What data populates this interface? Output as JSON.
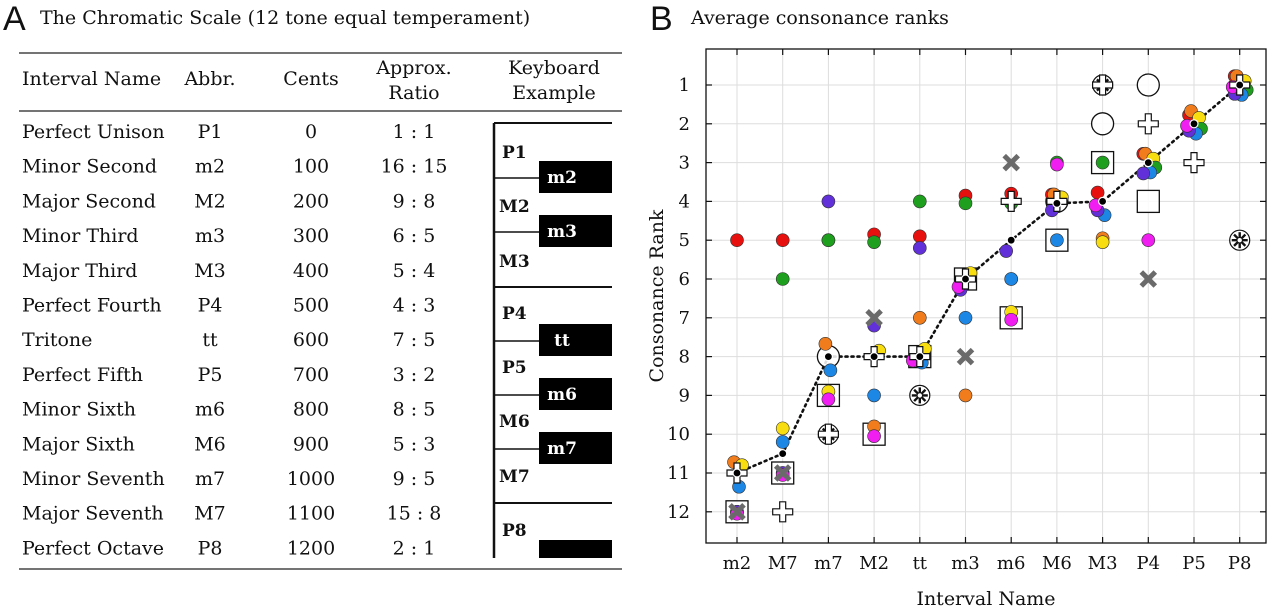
{
  "panel_a": {
    "letter": "A",
    "title": "The Chromatic Scale (12 tone equal temperament)",
    "headers": {
      "name": "Interval Name",
      "abbr": "Abbr.",
      "cents": "Cents",
      "ratio_1": "Approx.",
      "ratio_2": "Ratio",
      "keyboard_1": "Keyboard",
      "keyboard_2": "Example"
    },
    "rows": [
      {
        "name": "Perfect Unison",
        "abbr": "P1",
        "cents": "0",
        "ratio": "1 : 1"
      },
      {
        "name": "Minor Second",
        "abbr": "m2",
        "cents": "100",
        "ratio": "16 : 15"
      },
      {
        "name": "Major Second",
        "abbr": "M2",
        "cents": "200",
        "ratio": "9 : 8"
      },
      {
        "name": "Minor Third",
        "abbr": "m3",
        "cents": "300",
        "ratio": "6 : 5"
      },
      {
        "name": "Major Third",
        "abbr": "M3",
        "cents": "400",
        "ratio": "5 : 4"
      },
      {
        "name": "Perfect Fourth",
        "abbr": "P4",
        "cents": "500",
        "ratio": "4 : 3"
      },
      {
        "name": "Tritone",
        "abbr": "tt",
        "cents": "600",
        "ratio": "7 : 5"
      },
      {
        "name": "Perfect Fifth",
        "abbr": "P5",
        "cents": "700",
        "ratio": "3 : 2"
      },
      {
        "name": "Minor Sixth",
        "abbr": "m6",
        "cents": "800",
        "ratio": "8 : 5"
      },
      {
        "name": "Major Sixth",
        "abbr": "M6",
        "cents": "900",
        "ratio": "5 : 3"
      },
      {
        "name": "Minor Seventh",
        "abbr": "m7",
        "cents": "1000",
        "ratio": "9 : 5"
      },
      {
        "name": "Major Seventh",
        "abbr": "M7",
        "cents": "1100",
        "ratio": "15 : 8"
      },
      {
        "name": "Perfect Octave",
        "abbr": "P8",
        "cents": "1200",
        "ratio": "2 : 1"
      }
    ],
    "keyboard": {
      "white_key_labels": [
        "P1",
        "M2",
        "M3",
        "P4",
        "P5",
        "M6",
        "M7",
        "P8"
      ],
      "black_key_labels": [
        "m2",
        "m3",
        "tt",
        "m6",
        "m7"
      ]
    }
  },
  "panel_b": {
    "letter": "B",
    "title": "Average consonance ranks"
  },
  "colors": {
    "red": "#e8100e",
    "orange": "#f07c1c",
    "yellow": "#f8de10",
    "green": "#1ea01e",
    "blue": "#1d87e6",
    "purple": "#6230d8",
    "magenta": "#f01ef0",
    "gray": "#6a6a6a"
  },
  "chart_data": {
    "type": "scatter",
    "title": "Average consonance ranks",
    "xlabel": "Interval Name",
    "ylabel": "Consonance Rank",
    "categories": [
      "m2",
      "M7",
      "m7",
      "M2",
      "tt",
      "m3",
      "m6",
      "M6",
      "M3",
      "P4",
      "P5",
      "P8"
    ],
    "yticks": [
      1,
      2,
      3,
      4,
      5,
      6,
      7,
      8,
      9,
      10,
      11,
      12
    ],
    "ylim": [
      12.8,
      0.6
    ],
    "y_inverted": true,
    "grid": true,
    "average_line": {
      "style": "dotted",
      "values": [
        11,
        10.5,
        8,
        8,
        8,
        6,
        5,
        4.05,
        4,
        3,
        2,
        1
      ]
    },
    "series": [
      {
        "name": "red",
        "marker": "circle",
        "color": "#e8100e",
        "values": [
          5,
          5,
          5,
          4.85,
          4.9,
          3.85,
          3.8,
          3.9,
          3.85,
          2.85,
          1.85,
          0.85
        ]
      },
      {
        "name": "orange",
        "marker": "circle",
        "color": "#f07c1c",
        "values": [
          10.85,
          11,
          7.8,
          9.8,
          7,
          9,
          6,
          3.95,
          4.95,
          2.9,
          1.8,
          0.9
        ]
      },
      {
        "name": "yellow",
        "marker": "circle",
        "color": "#f8de10",
        "values": [
          10.85,
          9.85,
          8.9,
          7.9,
          7.85,
          5.9,
          6.85,
          3.95,
          5.05,
          2.95,
          1.9,
          0.95
        ]
      },
      {
        "name": "green",
        "marker": "circle",
        "color": "#1ea01e",
        "values": [
          12,
          6,
          5,
          5.05,
          4,
          4.05,
          4.05,
          3,
          3,
          3.05,
          2.05,
          1.05
        ]
      },
      {
        "name": "blue",
        "marker": "circle",
        "color": "#1d87e6",
        "values": [
          11.2,
          10.2,
          8.2,
          9,
          8,
          7,
          6,
          5,
          4.2,
          3.1,
          2.1,
          1.1
        ]
      },
      {
        "name": "purple",
        "marker": "circle",
        "color": "#6230d8",
        "values": [
          12,
          11,
          4,
          7.2,
          5.2,
          6.15,
          5.15,
          4.1,
          4.1,
          3.15,
          2.05,
          1.1
        ]
      },
      {
        "name": "magenta",
        "marker": "circle",
        "color": "#f01ef0",
        "values": [
          12.05,
          11.05,
          9.1,
          10.05,
          8.05,
          6.15,
          7.05,
          3.05,
          4.05,
          5,
          2,
          1
        ]
      },
      {
        "name": "large-open-circle",
        "marker": "open-circle",
        "color": "#111111",
        "values": [
          null,
          null,
          8,
          null,
          null,
          null,
          null,
          4,
          2,
          1,
          null,
          null
        ]
      },
      {
        "name": "open-square",
        "marker": "open-square",
        "color": "#111111",
        "values": [
          12,
          11,
          9,
          10,
          8,
          6,
          7,
          5,
          3,
          4,
          null,
          null
        ]
      },
      {
        "name": "plus",
        "marker": "plus",
        "color": "#111111",
        "values": [
          11,
          12,
          10,
          8,
          8,
          6,
          4,
          4,
          1,
          2,
          3,
          1
        ]
      },
      {
        "name": "x-cross",
        "marker": "x-cross",
        "color": "#6a6a6a",
        "values": [
          12,
          11,
          null,
          7,
          null,
          8,
          3,
          null,
          null,
          6,
          null,
          null
        ]
      },
      {
        "name": "asterisk",
        "marker": "asterisk",
        "color": "#111111",
        "values": [
          null,
          null,
          10,
          null,
          9,
          null,
          null,
          null,
          1,
          null,
          null,
          5
        ]
      }
    ]
  }
}
